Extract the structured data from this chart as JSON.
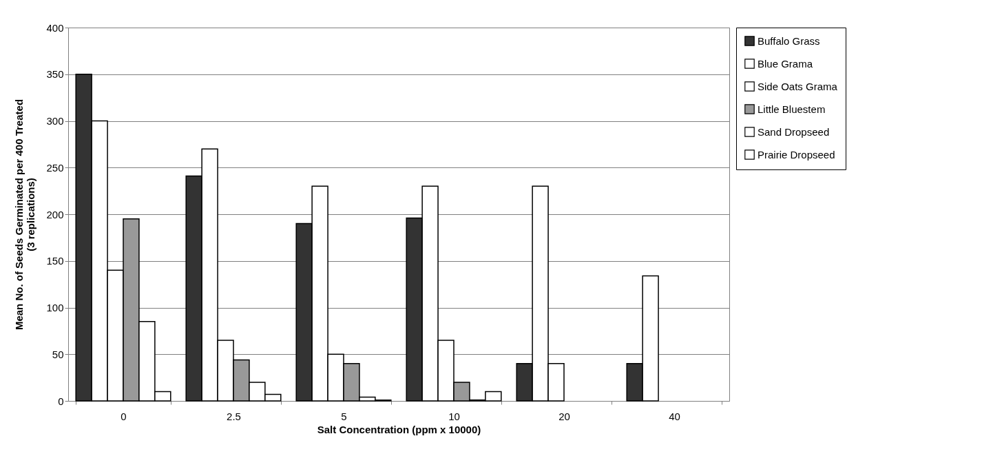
{
  "chart_data": {
    "type": "bar",
    "xlabel": "Salt Concentration (ppm x 10000)",
    "ylabel": "Mean No. of Seeds Germinated per 400 Treated (3 replications)",
    "categories": [
      "0",
      "2.5",
      "5",
      "10",
      "20",
      "40"
    ],
    "series": [
      {
        "name": "Buffalo Grass",
        "color": "#333333",
        "values": [
          350,
          241,
          190,
          196,
          40,
          40
        ]
      },
      {
        "name": "Blue Grama",
        "color": "#ffffff",
        "values": [
          300,
          270,
          230,
          230,
          230,
          134
        ]
      },
      {
        "name": "Side Oats Grama",
        "color": "#ffffff",
        "values": [
          140,
          65,
          50,
          65,
          40,
          0
        ]
      },
      {
        "name": "Little Bluestem",
        "color": "#999999",
        "values": [
          195,
          44,
          40,
          20,
          0,
          0
        ]
      },
      {
        "name": "Sand Dropseed",
        "color": "#ffffff",
        "values": [
          85,
          20,
          4,
          1,
          0,
          0
        ]
      },
      {
        "name": "Prairie Dropseed",
        "color": "#ffffff",
        "values": [
          10,
          7,
          1,
          10,
          0,
          0
        ]
      }
    ],
    "ylim": [
      0,
      400
    ],
    "yticks": [
      0,
      50,
      100,
      150,
      200,
      250,
      300,
      350,
      400
    ],
    "grid": "y",
    "legend": "right"
  }
}
